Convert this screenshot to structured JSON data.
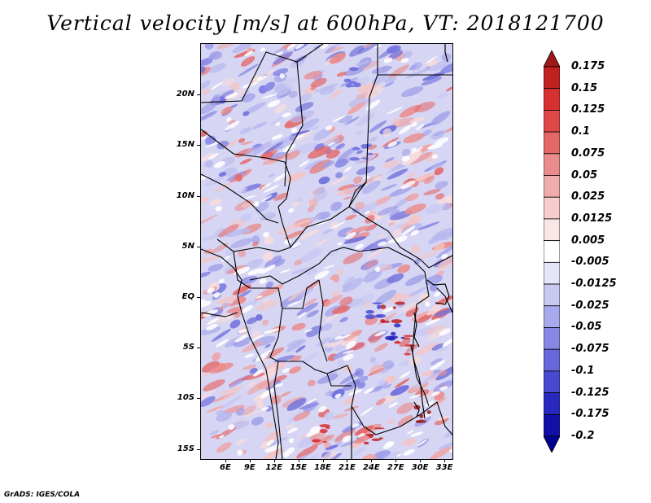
{
  "title": "Vertical velocity [m/s] at 600hPa, VT: 2018121700",
  "footer": "GrADS: IGES/COLA",
  "map": {
    "lon_range": [
      3,
      34
    ],
    "lat_range": [
      -16,
      25
    ],
    "lat_ticks": [
      {
        "value": 20,
        "label": "20N"
      },
      {
        "value": 15,
        "label": "15N"
      },
      {
        "value": 10,
        "label": "10N"
      },
      {
        "value": 5,
        "label": "5N"
      },
      {
        "value": 0,
        "label": "EQ"
      },
      {
        "value": -5,
        "label": "5S"
      },
      {
        "value": -10,
        "label": "10S"
      },
      {
        "value": -15,
        "label": "15S"
      }
    ],
    "lon_ticks": [
      {
        "value": 6,
        "label": "6E"
      },
      {
        "value": 9,
        "label": "9E"
      },
      {
        "value": 12,
        "label": "12E"
      },
      {
        "value": 15,
        "label": "15E"
      },
      {
        "value": 18,
        "label": "18E"
      },
      {
        "value": 21,
        "label": "21E"
      },
      {
        "value": 24,
        "label": "24E"
      },
      {
        "value": 27,
        "label": "27E"
      },
      {
        "value": 30,
        "label": "30E"
      },
      {
        "value": 33,
        "label": "33E"
      }
    ]
  },
  "colorbar": {
    "levels": [
      "0.175",
      "0.15",
      "0.125",
      "0.1",
      "0.075",
      "0.05",
      "0.025",
      "0.0125",
      "0.005",
      "-0.005",
      "-0.0125",
      "-0.025",
      "-0.05",
      "-0.075",
      "-0.1",
      "-0.125",
      "-0.175",
      "-0.2"
    ],
    "colors": [
      "#a01818",
      "#c02020",
      "#d83030",
      "#e04848",
      "#e46868",
      "#ea8c8c",
      "#f0acac",
      "#f6cccc",
      "#fae6e6",
      "#ffffff",
      "#e6e6f8",
      "#c8c8f0",
      "#a8a8ec",
      "#8888e4",
      "#6868dc",
      "#4848d0",
      "#2828c0",
      "#1010a8",
      "#000090"
    ]
  }
}
